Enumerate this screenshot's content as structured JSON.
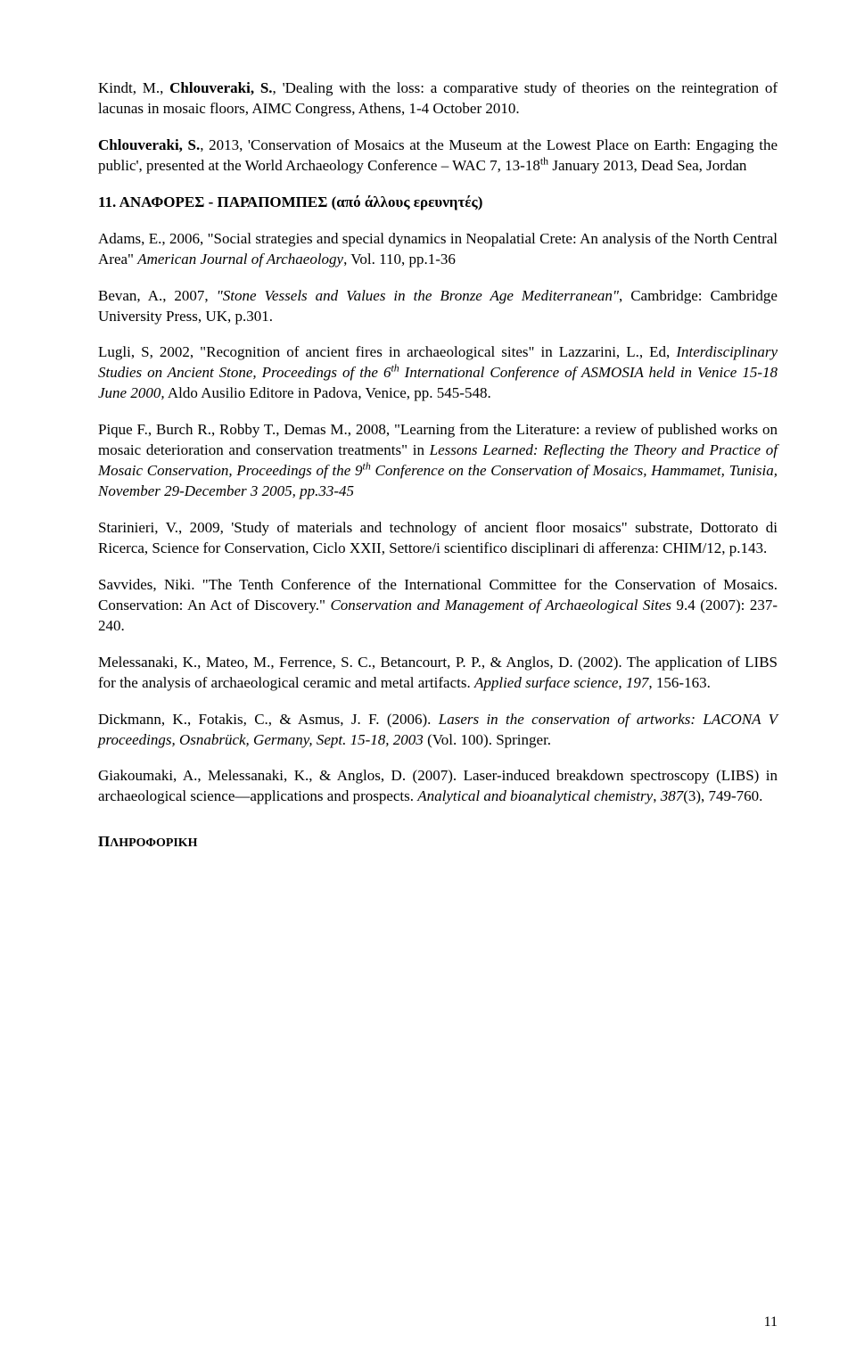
{
  "p1": "Kindt, M., <b>Chlouveraki, S.</b>, 'Dealing with the loss: a comparative study of theories on the reintegration of lacunas in mosaic floors, AIMC Congress, Athens, 1-4 October 2010.",
  "p2": "<b>Chlouveraki, S.</b>, 2013, 'Conservation of Mosaics at the Museum at the Lowest Place on Earth: Engaging the public', presented at the World Archaeology Conference – WAC 7, 13-18<sup>th</sup> January 2013, Dead Sea, Jordan",
  "heading11": "11. ΑΝΑΦΟΡΕΣ - ΠΑΡΑΠΟΜΠΕΣ (από άλλους ερευνητές)",
  "p3": "Adams, E., 2006, \"Social strategies and special dynamics in Neopalatial Crete: An analysis of the North Central Area\" <i>American Journal of Archaeology</i>, Vol. 110, pp.1-36",
  "p4": "Bevan, A., 2007, <i>\"Stone Vessels and Values in the Bronze Age Mediterranean\"</i>, Cambridge: Cambridge University Press, UK, p.301.",
  "p5": "Lugli, S, 2002, \"Recognition of ancient fires in archaeological sites\" in Lazzarini, L., Ed, <i>Interdisciplinary Studies on Ancient Stone, Proceedings of the 6<sup>th</sup> International Conference of ASMOSIA held in Venice 15-18 June 2000,</i> Aldo Ausilio Editore in Padova, Venice, pp. 545-548.",
  "p6": "Pique F., Burch R., Robby T., Demas M., 2008, \"Learning from the Literature: a review of published works on mosaic deterioration and conservation treatments\" in <i>Lessons Learned: Reflecting the Theory and Practice of Mosaic Conservation, Proceedings of the 9<sup>th</sup> Conference on the Conservation of Mosaics, Hammamet, Tunisia, November 29-December 3 2005, pp.33-45</i>",
  "p7": "Starinieri, V., 2009, 'Study of materials and technology of ancient floor mosaics\" substrate, Dottorato di Ricerca, Science for Conservation, Ciclo XXII, Settore/i scientifico disciplinari di afferenza: CHIM/12, p.143.",
  "p8": "Savvides, Niki. \"The Tenth Conference of the International Committee for the Conservation of Mosaics. Conservation: An Act of Discovery.\" <i>Conservation and Management of Archaeological Sites</i> 9.4 (2007): 237-240.",
  "p9": "Melessanaki, K., Mateo, M., Ferrence, S. C., Betancourt, P. P., & Anglos, D. (2002). The application of LIBS for the analysis of archaeological ceramic and metal artifacts. <i>Applied surface science</i>, <i>197</i>, 156-163.",
  "p10": "Dickmann, K., Fotakis, C., & Asmus, J. F. (2006). <i>Lasers in the conservation of artworks: LACONA V proceedings, Osnabrück, Germany, Sept. 15-18, 2003</i> (Vol. 100). Springer.",
  "p11": "Giakoumaki, A., Melessanaki, K., & Anglos, D. (2007). Laser-induced breakdown spectroscopy (LIBS) in archaeological science—applications and prospects. <i>Analytical and bioanalytical chemistry</i>, <i>387</i>(3), 749-760.",
  "heading_last": "Π<span class=\"smcap\">ΛΗΡΟΦΟΡΙΚΗ</span>",
  "page_number": "11"
}
